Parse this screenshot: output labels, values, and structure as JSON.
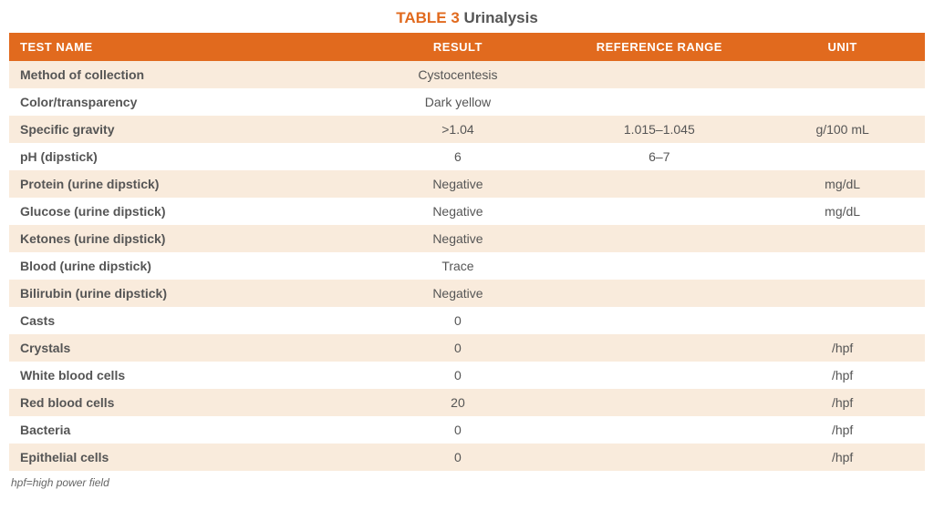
{
  "title": {
    "label": "TABLE 3",
    "name": "Urinalysis",
    "label_color": "#e16a1e",
    "name_color": "#555555",
    "fontsize": 17
  },
  "table": {
    "type": "table",
    "header_bg": "#e16a1e",
    "header_text_color": "#ffffff",
    "row_even_bg": "#f9ebdc",
    "row_odd_bg": "#ffffff",
    "text_color": "#555555",
    "fontsize": 14,
    "columns": [
      {
        "key": "name",
        "label": "TEST NAME",
        "align": "left",
        "width": "38%"
      },
      {
        "key": "result",
        "label": "RESULT",
        "align": "center",
        "width": "22%"
      },
      {
        "key": "ref",
        "label": "REFERENCE RANGE",
        "align": "center",
        "width": "22%"
      },
      {
        "key": "unit",
        "label": "UNIT",
        "align": "center",
        "width": "18%"
      }
    ],
    "rows": [
      {
        "name": "Method of collection",
        "result": "Cystocentesis",
        "ref": "",
        "unit": ""
      },
      {
        "name": "Color/transparency",
        "result": "Dark yellow",
        "ref": "",
        "unit": ""
      },
      {
        "name": "Specific gravity",
        "result": ">1.04",
        "ref": "1.015–1.045",
        "unit": "g/100 mL"
      },
      {
        "name": "pH (dipstick)",
        "result": "6",
        "ref": "6–7",
        "unit": ""
      },
      {
        "name": "Protein (urine dipstick)",
        "result": "Negative",
        "ref": "",
        "unit": "mg/dL"
      },
      {
        "name": "Glucose (urine dipstick)",
        "result": "Negative",
        "ref": "",
        "unit": "mg/dL"
      },
      {
        "name": "Ketones (urine dipstick)",
        "result": "Negative",
        "ref": "",
        "unit": ""
      },
      {
        "name": "Blood (urine dipstick)",
        "result": "Trace",
        "ref": "",
        "unit": ""
      },
      {
        "name": "Bilirubin (urine dipstick)",
        "result": "Negative",
        "ref": "",
        "unit": ""
      },
      {
        "name": "Casts",
        "result": "0",
        "ref": "",
        "unit": ""
      },
      {
        "name": "Crystals",
        "result": "0",
        "ref": "",
        "unit": "/hpf"
      },
      {
        "name": "White blood cells",
        "result": "0",
        "ref": "",
        "unit": "/hpf"
      },
      {
        "name": "Red blood cells",
        "result": "20",
        "ref": "",
        "unit": "/hpf"
      },
      {
        "name": "Bacteria",
        "result": "0",
        "ref": "",
        "unit": "/hpf"
      },
      {
        "name": "Epithelial cells",
        "result": "0",
        "ref": "",
        "unit": "/hpf"
      }
    ]
  },
  "footnote": "hpf=high power field"
}
